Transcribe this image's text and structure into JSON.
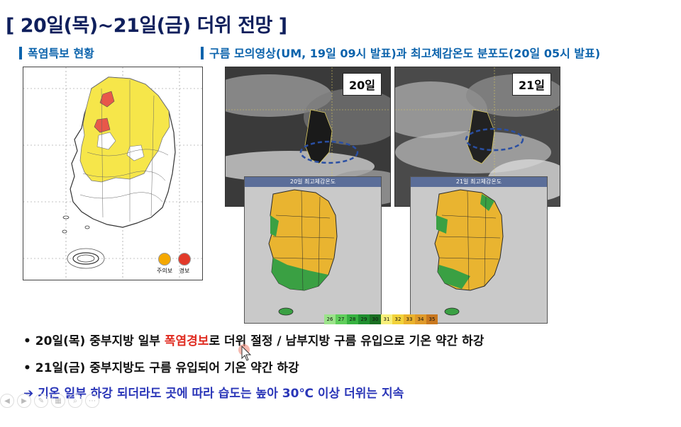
{
  "title": "[ 20일(목)~21일(금) 더위 전망 ]",
  "left_section": {
    "label": "폭염특보 현황"
  },
  "right_section": {
    "label": "구름 모의영상(UM, 19일 09시 발표)과 최고체감온도 분포도(20일 05시 발표)"
  },
  "legend": {
    "advisory": "주의보",
    "warning": "경보",
    "advisory_color": "#f5a800",
    "warning_color": "#e23a2a"
  },
  "satellite_20": {
    "badge": "20일"
  },
  "satellite_21": {
    "badge": "21일"
  },
  "inset_20": {
    "title": "20일 최고체감온도"
  },
  "inset_21": {
    "title": "21일 최고체감온도"
  },
  "colorbar": {
    "labels": [
      "26",
      "27",
      "28",
      "29",
      "30",
      "31",
      "32",
      "33",
      "34",
      "35"
    ],
    "colors": [
      "#9be38a",
      "#5fce5a",
      "#36b240",
      "#1f8f2f",
      "#1a6f22",
      "#f7ef7a",
      "#f2d23a",
      "#eab22c",
      "#df9a2a",
      "#c9781f"
    ]
  },
  "bullets": {
    "b1_pre": "20일(목) 중부지방 일부 ",
    "b1_hl": "폭염경보",
    "b1_post": "로 더위 절정 / 남부지방 구름 유입으로 기온 약간 하강",
    "b2": "21일(금) 중부지방도 구름 유입되어 기온 약간 하강",
    "b3": "기온 일부 하강 되더라도 곳에 따라 습도는 높아 30℃ 이상 더위는 지속"
  },
  "colors": {
    "title": "#0f1f5c",
    "section": "#0b63ac",
    "highlight": "#e02b20",
    "emphasis": "#2a36b8"
  }
}
